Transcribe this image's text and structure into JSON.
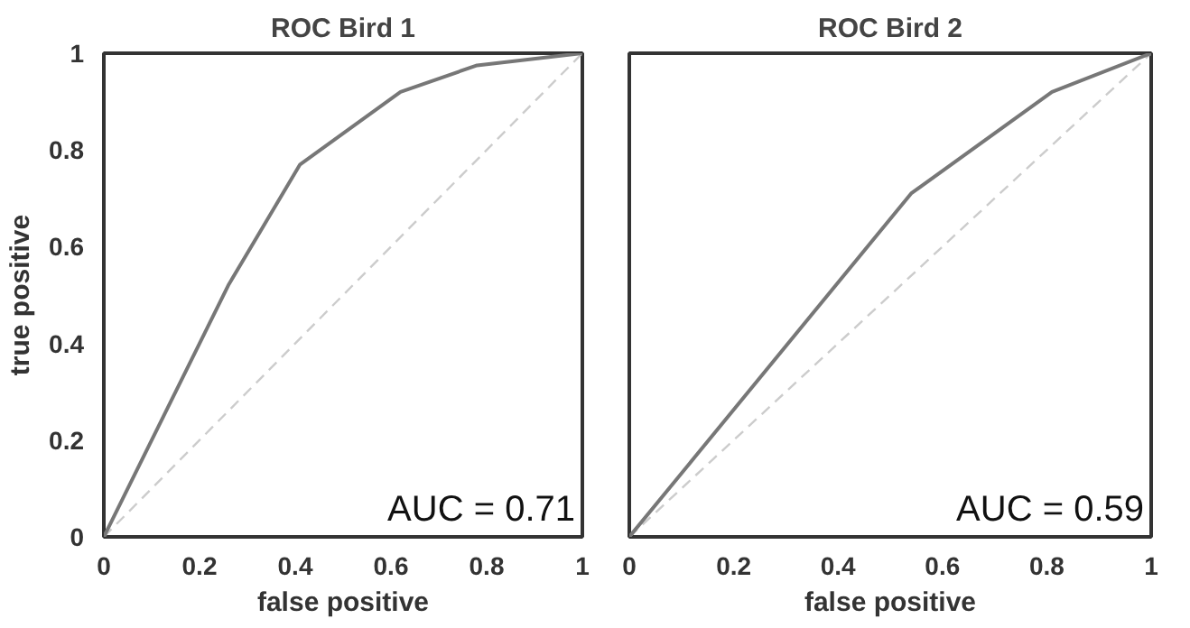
{
  "chart_data": [
    {
      "type": "line",
      "title": "ROC Bird 1",
      "xlabel": "false positive",
      "ylabel": "true positive",
      "xlim": [
        0,
        1
      ],
      "ylim": [
        0,
        1
      ],
      "xticks": [
        0,
        0.2,
        0.4,
        0.6,
        0.8,
        1
      ],
      "yticks": [
        0,
        0.2,
        0.4,
        0.6,
        0.8,
        1
      ],
      "grid": false,
      "annotations": [
        "AUC = 0.71"
      ],
      "series": [
        {
          "x": [
            0,
            1
          ],
          "values": [
            0,
            1
          ],
          "color": "#cccccc",
          "line_style": "dashed"
        },
        {
          "x": [
            0,
            0.26,
            0.41,
            0.62,
            0.78,
            1
          ],
          "values": [
            0,
            0.52,
            0.77,
            0.92,
            0.975,
            1
          ],
          "color": "#777777",
          "line_style": "solid"
        }
      ]
    },
    {
      "type": "line",
      "title": "ROC Bird 2",
      "xlabel": "false positive",
      "xlim": [
        0,
        1
      ],
      "ylim": [
        0,
        1
      ],
      "xticks": [
        0,
        0.2,
        0.4,
        0.6,
        0.8,
        1
      ],
      "yticks": [
        0,
        0.2,
        0.4,
        0.6,
        0.8,
        1
      ],
      "tick_labels": "x",
      "grid": false,
      "annotations": [
        "AUC = 0.59"
      ],
      "series": [
        {
          "x": [
            0,
            1
          ],
          "values": [
            0,
            1
          ],
          "color": "#cccccc",
          "line_style": "dashed"
        },
        {
          "x": [
            0,
            0.54,
            0.81,
            1
          ],
          "values": [
            0,
            0.71,
            0.92,
            1
          ],
          "color": "#777777",
          "line_style": "solid"
        }
      ]
    }
  ]
}
